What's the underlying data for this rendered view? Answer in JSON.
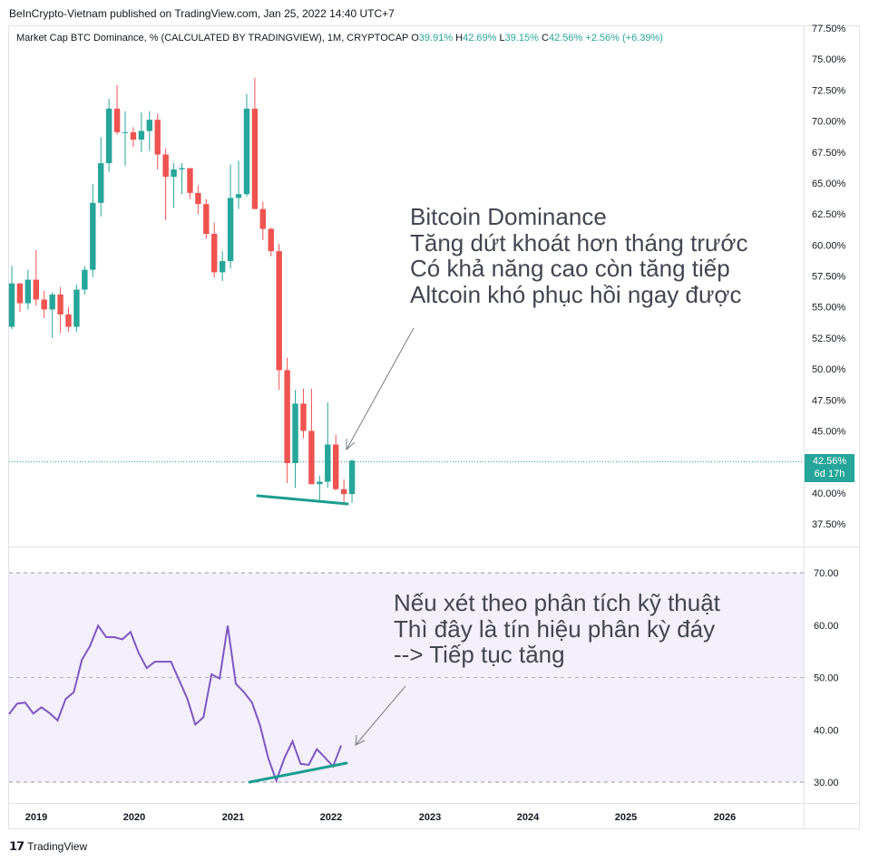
{
  "header": {
    "publisher_line": "BeInCrypto-Vietnam published on TradingView.com, Jan 25, 2022 14:40 UTC+7"
  },
  "legend": {
    "symbol": "Market Cap BTC Dominance, % (CALCULATED BY TRADINGVIEW), 1M, CRYPTOCAP",
    "o_label": "O",
    "o_value": "39.91%",
    "h_label": "H",
    "h_value": "42.69%",
    "l_label": "L",
    "l_value": "39.15%",
    "c_label": "C",
    "c_value": "42.56%",
    "change": "+2.56% (+6.39%)"
  },
  "price_tag": {
    "value": "42.56%",
    "countdown": "6d 17h"
  },
  "annotations": {
    "price_lines": [
      "Bitcoin Dominance",
      "Tăng dứt khoát hơn tháng trước",
      "Có khả năng cao còn tăng tiếp",
      "Altcoin khó phục hồi ngay được"
    ],
    "indicator_lines": [
      "Nếu xét theo phân tích kỹ thuật",
      "Thì đây là tín hiệu phân kỳ đáy",
      "--> Tiếp tục tăng"
    ]
  },
  "footer": {
    "brand": "TradingView"
  },
  "colors": {
    "up": "#26a69a",
    "down": "#ef5350",
    "rsi_line": "#7e57c2",
    "rsi_band": "#f3effb",
    "trend": "#1a9e8f"
  },
  "chart_data": [
    {
      "type": "candlestick",
      "title": "",
      "y_ticks": [
        "77.50%",
        "75.00%",
        "72.50%",
        "70.00%",
        "67.50%",
        "65.00%",
        "62.50%",
        "60.00%",
        "57.50%",
        "55.00%",
        "52.50%",
        "50.00%",
        "47.50%",
        "45.00%",
        "42.50%",
        "40.00%",
        "37.50%"
      ],
      "y_tick_values": [
        77.5,
        75,
        72.5,
        70,
        67.5,
        65,
        62.5,
        60,
        57.5,
        55,
        52.5,
        50,
        47.5,
        45,
        42.5,
        40,
        37.5
      ],
      "x_ticks": [
        "2019",
        "2020",
        "2021",
        "2022",
        "2023",
        "2024",
        "2025",
        "2026"
      ],
      "last_price": 42.56,
      "ohlc": [
        [
          53.4,
          58.3,
          53.2,
          56.9
        ],
        [
          56.9,
          56.9,
          54.6,
          55.3
        ],
        [
          55.3,
          58.0,
          54.8,
          57.2
        ],
        [
          57.2,
          59.6,
          55.1,
          55.6
        ],
        [
          55.6,
          56.3,
          54.1,
          54.8
        ],
        [
          54.8,
          56.2,
          52.5,
          56.0
        ],
        [
          56.0,
          56.6,
          52.9,
          54.4
        ],
        [
          54.4,
          55.0,
          53.0,
          53.4
        ],
        [
          53.4,
          56.8,
          53.0,
          56.4
        ],
        [
          56.4,
          58.3,
          56.0,
          58.0
        ],
        [
          58.0,
          64.9,
          57.4,
          63.4
        ],
        [
          63.4,
          68.7,
          62.3,
          66.6
        ],
        [
          66.6,
          71.8,
          65.9,
          71.0
        ],
        [
          71.0,
          72.9,
          68.9,
          69.1
        ],
        [
          69.1,
          70.8,
          66.4,
          69.1
        ],
        [
          69.1,
          69.5,
          67.9,
          68.5
        ],
        [
          68.5,
          70.7,
          67.5,
          69.2
        ],
        [
          69.2,
          70.8,
          67.6,
          70.1
        ],
        [
          70.1,
          70.6,
          66.1,
          67.3
        ],
        [
          67.3,
          67.8,
          62.0,
          65.5
        ],
        [
          65.5,
          66.6,
          63.0,
          66.1
        ],
        [
          66.1,
          66.6,
          64.1,
          66.2
        ],
        [
          66.2,
          66.2,
          63.7,
          64.2
        ],
        [
          64.2,
          64.8,
          62.5,
          63.3
        ],
        [
          63.3,
          63.7,
          60.5,
          60.9
        ],
        [
          60.9,
          61.8,
          57.4,
          57.8
        ],
        [
          57.8,
          59.5,
          57.1,
          58.7
        ],
        [
          58.7,
          66.5,
          58.1,
          63.8
        ],
        [
          63.8,
          66.8,
          62.9,
          64.1
        ],
        [
          64.1,
          72.2,
          63.9,
          71.0
        ],
        [
          71.0,
          73.5,
          63.1,
          62.9
        ],
        [
          62.9,
          63.5,
          60.4,
          61.3
        ],
        [
          61.3,
          61.4,
          59.1,
          59.5
        ],
        [
          59.5,
          60.1,
          48.3,
          49.9
        ],
        [
          49.9,
          50.9,
          40.8,
          42.4
        ],
        [
          42.4,
          48.3,
          40.4,
          47.2
        ],
        [
          47.2,
          48.4,
          44.4,
          45.0
        ],
        [
          45.0,
          48.4,
          40.9,
          40.7
        ],
        [
          40.7,
          41.4,
          39.3,
          40.9
        ],
        [
          40.9,
          47.3,
          40.4,
          43.9
        ],
        [
          43.9,
          44.7,
          40.2,
          40.3
        ],
        [
          40.3,
          41.1,
          39.0,
          39.9
        ],
        [
          39.9,
          42.7,
          39.2,
          42.6
        ]
      ],
      "annotation_trendline": [
        [
          40.5,
          39.3
        ]
      ]
    },
    {
      "type": "line",
      "title": "",
      "y_ticks": [
        "70.00",
        "60.00",
        "50.00",
        "40.00",
        "30.00"
      ],
      "y_tick_values": [
        70,
        60,
        50,
        40,
        30
      ],
      "bands": [
        70,
        50,
        30
      ],
      "series": [
        {
          "values": [
            43.0,
            45.0,
            45.2,
            43.1,
            44.3,
            43.2,
            41.8,
            45.9,
            47.2,
            53.4,
            56.0,
            59.9,
            57.7,
            57.7,
            57.3,
            58.7,
            54.7,
            51.8,
            53.0,
            53.0,
            53.0,
            49.5,
            46.0,
            41.0,
            42.4,
            50.6,
            49.8,
            59.9,
            48.8,
            47.2,
            45.2,
            40.8,
            34.6,
            30.3,
            34.6,
            37.8,
            33.5,
            33.3,
            36.3,
            34.7,
            33.0,
            37.0
          ]
        }
      ]
    }
  ]
}
